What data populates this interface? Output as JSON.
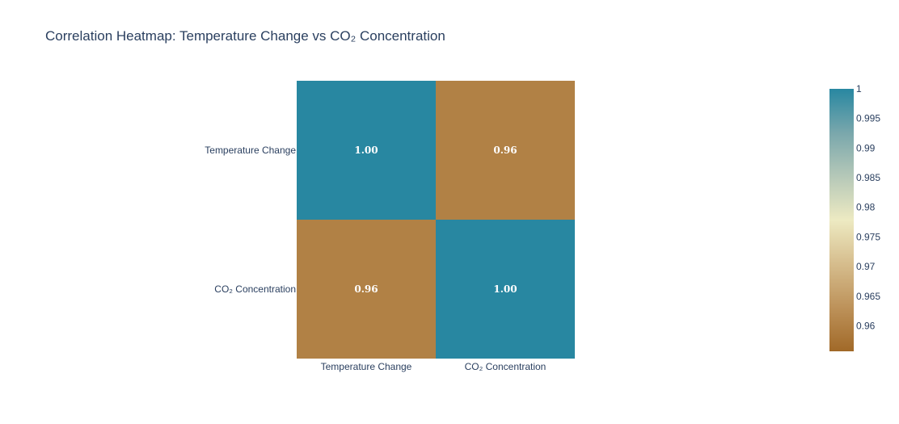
{
  "chart_data": {
    "type": "heatmap",
    "title": "Correlation Heatmap: Temperature Change vs CO₂ Concentration",
    "x_categories": [
      "Temperature Change",
      "CO₂ Concentration"
    ],
    "y_categories": [
      "Temperature Change",
      "CO₂ Concentration"
    ],
    "z": [
      [
        1.0,
        0.96
      ],
      [
        0.96,
        1.0
      ]
    ],
    "cell_labels": [
      [
        "1.00",
        "0.96"
      ],
      [
        "0.96",
        "1.00"
      ]
    ],
    "zmin": 0.9557,
    "zmax": 1.0,
    "colorscale": [
      [
        0.0,
        "#a16928"
      ],
      [
        0.167,
        "#bd925a"
      ],
      [
        0.333,
        "#d6bd8d"
      ],
      [
        0.5,
        "#edeac2"
      ],
      [
        0.667,
        "#b5c8b8"
      ],
      [
        0.833,
        "#79a7ac"
      ],
      [
        1.0,
        "#2887a1"
      ]
    ],
    "colorbar": {
      "tick_values": [
        0.96,
        0.965,
        0.97,
        0.975,
        0.98,
        0.985,
        0.99,
        0.995,
        1.0
      ],
      "tick_labels": [
        "0.96",
        "0.965",
        "0.97",
        "0.975",
        "0.98",
        "0.985",
        "0.99",
        "0.995",
        "1"
      ]
    }
  }
}
